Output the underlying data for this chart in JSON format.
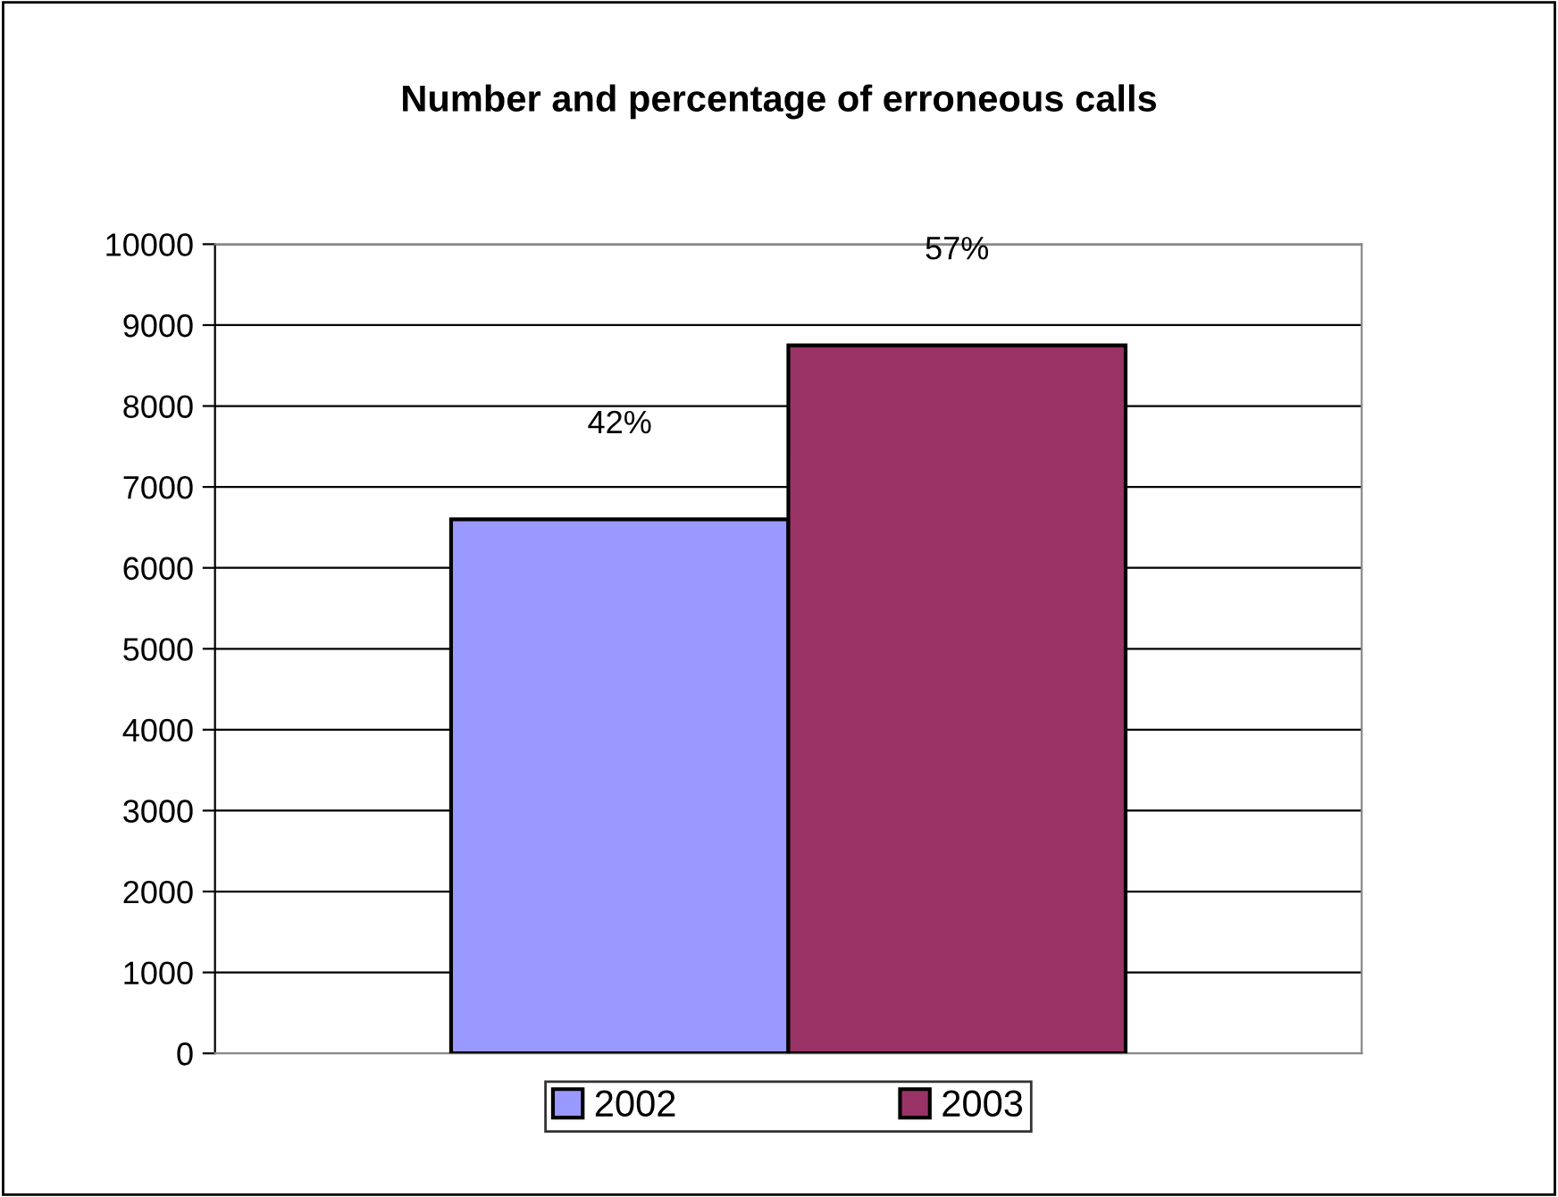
{
  "chart_data": {
    "type": "bar",
    "title": "Number and percentage of erroneous calls",
    "categories": [
      null
    ],
    "series": [
      {
        "name": "2002",
        "color": "#9999ff",
        "values": [
          6600
        ]
      },
      {
        "name": "2003",
        "color": "#993366",
        "values": [
          8750
        ]
      }
    ],
    "annotations": [
      {
        "text": "42%",
        "y": 6600
      },
      {
        "text": "57%",
        "y": 8750
      }
    ],
    "ylim": [
      0,
      10000
    ],
    "yticks": [
      0,
      1000,
      2000,
      3000,
      4000,
      5000,
      6000,
      7000,
      8000,
      9000,
      10000
    ],
    "grid": "y",
    "legend": "bottom"
  }
}
